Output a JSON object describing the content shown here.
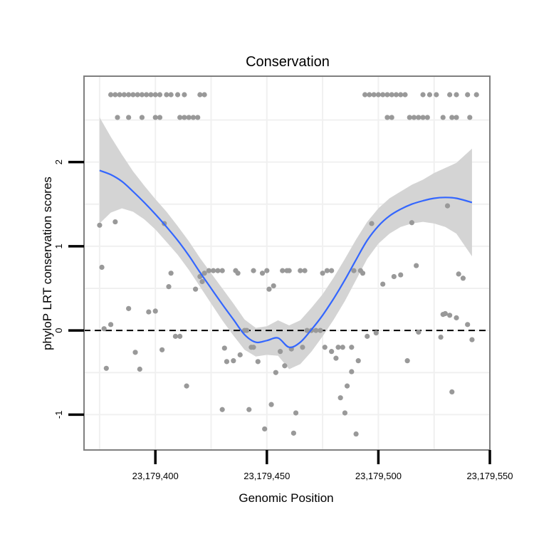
{
  "chart_data": {
    "type": "scatter",
    "title": "Conservation",
    "xlabel": "Genomic Position",
    "ylabel": "phyloP LRT conservation scores",
    "xlim": [
      23179368,
      23179550
    ],
    "ylim": [
      -1.42,
      3.02
    ],
    "x_ticks": [
      23179400,
      23179450,
      23179500,
      23179550
    ],
    "x_tick_labels": [
      "23,179,400",
      "23,179,450",
      "23,179,500",
      "23,179,550"
    ],
    "y_ticks": [
      -1,
      0,
      1,
      2
    ],
    "y_tick_labels": [
      "-1",
      "0",
      "1",
      "2"
    ],
    "y_minor_grid": [
      -0.5,
      0.5,
      1.5,
      2.5
    ],
    "x_minor_grid": [
      23179375,
      23179425,
      23179475,
      23179525
    ],
    "reference_line": {
      "y": 0,
      "style": "dashed"
    },
    "colors": {
      "points": "#999999",
      "smooth_line": "#3366ff",
      "ribbon": "#d4d4d4",
      "frame": "#7f7f7f",
      "grid": "#f0f0f0"
    },
    "points": [
      [
        23179375,
        1.25
      ],
      [
        23179376,
        0.75
      ],
      [
        23179377,
        0.02
      ],
      [
        23179378,
        -0.45
      ],
      [
        23179380,
        0.07
      ],
      [
        23179382,
        1.29
      ],
      [
        23179388,
        0.26
      ],
      [
        23179391,
        -0.26
      ],
      [
        23179393,
        -0.46
      ],
      [
        23179397,
        0.22
      ],
      [
        23179400,
        0.23
      ],
      [
        23179403,
        -0.23
      ],
      [
        23179404,
        1.27
      ],
      [
        23179406,
        0.52
      ],
      [
        23179407,
        0.68
      ],
      [
        23179409,
        -0.07
      ],
      [
        23179411,
        -0.07
      ],
      [
        23179414,
        -0.66
      ],
      [
        23179418,
        0.49
      ],
      [
        23179420,
        0.64
      ],
      [
        23179421,
        0.58
      ],
      [
        23179422,
        0.68
      ],
      [
        23179424,
        0.71
      ],
      [
        23179426,
        0.71
      ],
      [
        23179428,
        0.71
      ],
      [
        23179430,
        0.71
      ],
      [
        23179430,
        -0.94
      ],
      [
        23179431,
        -0.21
      ],
      [
        23179432,
        -0.37
      ],
      [
        23179435,
        -0.36
      ],
      [
        23179436,
        0.71
      ],
      [
        23179437,
        0.68
      ],
      [
        23179438,
        -0.29
      ],
      [
        23179440,
        0.0
      ],
      [
        23179441,
        0.0
      ],
      [
        23179442,
        -0.94
      ],
      [
        23179443,
        -0.2
      ],
      [
        23179444,
        0.71
      ],
      [
        23179444,
        -0.2
      ],
      [
        23179446,
        -0.37
      ],
      [
        23179448,
        0.68
      ],
      [
        23179449,
        -1.17
      ],
      [
        23179450,
        0.71
      ],
      [
        23179451,
        0.49
      ],
      [
        23179452,
        -0.88
      ],
      [
        23179453,
        0.53
      ],
      [
        23179454,
        -0.5
      ],
      [
        23179456,
        -0.25
      ],
      [
        23179457,
        0.71
      ],
      [
        23179458,
        -0.42
      ],
      [
        23179459,
        0.71
      ],
      [
        23179460,
        0.71
      ],
      [
        23179461,
        -0.22
      ],
      [
        23179462,
        -1.22
      ],
      [
        23179463,
        -0.98
      ],
      [
        23179465,
        0.71
      ],
      [
        23179466,
        -0.2
      ],
      [
        23179467,
        0.71
      ],
      [
        23179468,
        0.0
      ],
      [
        23179470,
        0.0
      ],
      [
        23179472,
        0.0
      ],
      [
        23179474,
        0.0
      ],
      [
        23179475,
        0.68
      ],
      [
        23179476,
        -0.2
      ],
      [
        23179477,
        0.71
      ],
      [
        23179479,
        0.71
      ],
      [
        23179479,
        -0.25
      ],
      [
        23179481,
        -0.33
      ],
      [
        23179482,
        -0.2
      ],
      [
        23179483,
        -0.8
      ],
      [
        23179484,
        -0.2
      ],
      [
        23179485,
        -0.98
      ],
      [
        23179486,
        -0.66
      ],
      [
        23179488,
        -0.2
      ],
      [
        23179488,
        -0.49
      ],
      [
        23179489,
        0.71
      ],
      [
        23179490,
        -1.23
      ],
      [
        23179491,
        -0.36
      ],
      [
        23179492,
        0.71
      ],
      [
        23179493,
        0.68
      ],
      [
        23179495,
        -0.07
      ],
      [
        23179497,
        1.27
      ],
      [
        23179499,
        -0.03
      ],
      [
        23179502,
        0.55
      ],
      [
        23179507,
        0.64
      ],
      [
        23179510,
        0.66
      ],
      [
        23179513,
        -0.36
      ],
      [
        23179515,
        1.28
      ],
      [
        23179517,
        0.77
      ],
      [
        23179518,
        -0.02
      ],
      [
        23179528,
        -0.08
      ],
      [
        23179529,
        0.19
      ],
      [
        23179530,
        0.2
      ],
      [
        23179531,
        1.48
      ],
      [
        23179532,
        0.18
      ],
      [
        23179533,
        -0.73
      ],
      [
        23179535,
        0.15
      ],
      [
        23179536,
        0.67
      ],
      [
        23179538,
        0.62
      ],
      [
        23179540,
        0.07
      ],
      [
        23179542,
        -0.11
      ]
    ],
    "top_rows": {
      "upper_y": 2.8,
      "lower_y": 2.53,
      "upper_x": [
        23179380,
        23179382,
        23179384,
        23179386,
        23179388,
        23179390,
        23179392,
        23179394,
        23179396,
        23179398,
        23179400,
        23179402,
        23179405,
        23179407,
        23179410,
        23179413,
        23179420,
        23179422,
        23179494,
        23179496,
        23179498,
        23179500,
        23179502,
        23179504,
        23179506,
        23179508,
        23179510,
        23179512,
        23179520,
        23179523,
        23179526,
        23179532,
        23179535,
        23179540,
        23179544
      ],
      "lower_x": [
        23179383,
        23179388,
        23179394,
        23179400,
        23179402,
        23179411,
        23179413,
        23179415,
        23179417,
        23179419,
        23179504,
        23179506,
        23179514,
        23179516,
        23179518,
        23179520,
        23179522,
        23179529,
        23179533,
        23179535,
        23179541
      ]
    },
    "smooth": {
      "x": [
        23179375,
        23179380,
        23179385,
        23179390,
        23179395,
        23179400,
        23179405,
        23179410,
        23179415,
        23179420,
        23179425,
        23179430,
        23179435,
        23179440,
        23179445,
        23179450,
        23179455,
        23179460,
        23179465,
        23179470,
        23179475,
        23179480,
        23179485,
        23179490,
        23179495,
        23179500,
        23179505,
        23179510,
        23179515,
        23179520,
        23179525,
        23179530,
        23179535,
        23179542
      ],
      "y": [
        1.9,
        1.85,
        1.77,
        1.65,
        1.52,
        1.38,
        1.23,
        1.07,
        0.89,
        0.69,
        0.5,
        0.31,
        0.13,
        -0.05,
        -0.14,
        -0.12,
        -0.09,
        -0.2,
        -0.14,
        0.01,
        0.18,
        0.38,
        0.6,
        0.84,
        1.07,
        1.24,
        1.36,
        1.44,
        1.5,
        1.54,
        1.57,
        1.58,
        1.57,
        1.52
      ],
      "lower": [
        1.27,
        1.4,
        1.45,
        1.41,
        1.32,
        1.2,
        1.05,
        0.9,
        0.72,
        0.52,
        0.32,
        0.12,
        -0.06,
        -0.23,
        -0.31,
        -0.29,
        -0.3,
        -0.46,
        -0.4,
        -0.25,
        -0.07,
        0.13,
        0.35,
        0.6,
        0.85,
        1.03,
        1.15,
        1.23,
        1.27,
        1.29,
        1.27,
        1.23,
        1.15,
        0.88
      ],
      "upper": [
        2.53,
        2.3,
        2.09,
        1.89,
        1.72,
        1.56,
        1.41,
        1.24,
        1.06,
        0.86,
        0.68,
        0.5,
        0.32,
        0.13,
        0.03,
        0.05,
        0.12,
        0.06,
        0.12,
        0.27,
        0.43,
        0.63,
        0.85,
        1.08,
        1.29,
        1.45,
        1.57,
        1.65,
        1.73,
        1.79,
        1.87,
        1.93,
        1.99,
        2.16
      ]
    }
  }
}
